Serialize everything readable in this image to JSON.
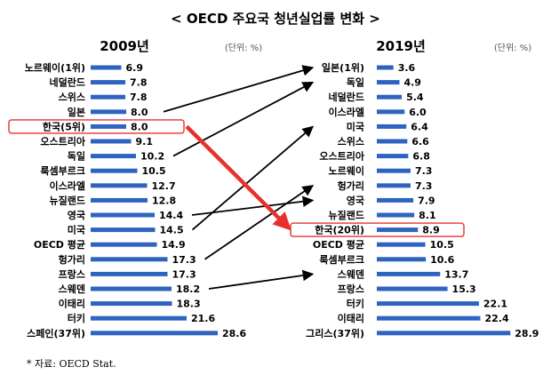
{
  "title": "< OECD 주요국 청년실업률 변화 >",
  "source": "* 자료: OECD Stat.",
  "colors": {
    "bar": "#2e64c0",
    "highlight": "#e83030",
    "text": "#111111",
    "arrow": "#000000"
  },
  "chart_data": [
    {
      "type": "bar",
      "orientation": "horizontal",
      "title": "2009년",
      "unit": "(단위: %)",
      "highlight": "한국(5위)",
      "categories": [
        "노르웨이(1위)",
        "네덜란드",
        "스위스",
        "일본",
        "한국(5위)",
        "오스트리아",
        "독일",
        "룩셈부르크",
        "이스라엘",
        "뉴질랜드",
        "영국",
        "미국",
        "OECD 평균",
        "헝가리",
        "프랑스",
        "스웨덴",
        "이태리",
        "터키",
        "스페인(37위)"
      ],
      "values": [
        6.9,
        7.8,
        7.8,
        8.0,
        8.0,
        9.1,
        10.2,
        10.5,
        12.7,
        12.8,
        14.4,
        14.5,
        14.9,
        17.3,
        17.3,
        18.2,
        18.3,
        21.6,
        28.6
      ],
      "value_labels": [
        "6.9",
        "7.8",
        "7.8",
        "8.0",
        "8.0",
        "9.1",
        "10.2",
        "10.5",
        "12.7",
        "12.8",
        "14.4",
        "14.5",
        "14.9",
        "17.3",
        "17.3",
        "18.2",
        "18.3",
        "21.6",
        "28.6"
      ]
    },
    {
      "type": "bar",
      "orientation": "horizontal",
      "title": "2019년",
      "unit": "(단위: %)",
      "highlight": "한국(20위)",
      "categories": [
        "일본(1위)",
        "독일",
        "네덜란드",
        "이스라엘",
        "미국",
        "스위스",
        "오스트리아",
        "노르웨이",
        "헝가리",
        "영국",
        "뉴질랜드",
        "한국(20위)",
        "OECD 평균",
        "룩셈부르크",
        "스웨덴",
        "프랑스",
        "터키",
        "이태리",
        "그리스(37위)"
      ],
      "values": [
        3.6,
        4.9,
        5.4,
        6.0,
        6.4,
        6.6,
        6.8,
        7.3,
        7.3,
        7.9,
        8.1,
        8.9,
        10.5,
        10.6,
        13.7,
        15.3,
        22.1,
        22.4,
        28.9
      ],
      "value_labels": [
        "3.6",
        "4.9",
        "5.4",
        "6.0",
        "6.4",
        "6.6",
        "6.8",
        "7.3",
        "7.3",
        "7.9",
        "8.1",
        "8.9",
        "10.5",
        "10.6",
        "13.7",
        "15.3",
        "22.1",
        "22.4",
        "28.9"
      ]
    }
  ],
  "arrows": [
    {
      "from": "일본",
      "to": "일본(1위)",
      "color": "black"
    },
    {
      "from": "독일",
      "to": "독일",
      "color": "black"
    },
    {
      "from": "미국",
      "to": "미국",
      "color": "black"
    },
    {
      "from": "영국",
      "to": "영국",
      "color": "black"
    },
    {
      "from": "헝가리",
      "to": "헝가리",
      "color": "black"
    },
    {
      "from": "스웨덴",
      "to": "스웨덴",
      "color": "black"
    },
    {
      "from": "한국(5위)",
      "to": "한국(20위)",
      "color": "red"
    }
  ]
}
